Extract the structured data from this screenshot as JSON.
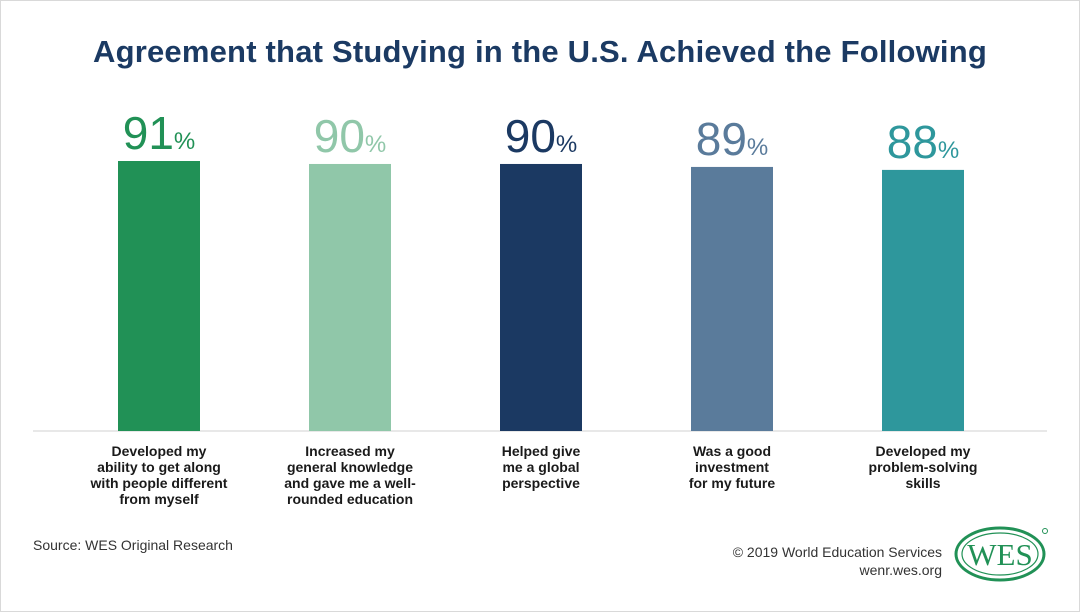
{
  "header": {
    "title": "Agreement that Studying in the U.S. Achieved the Following"
  },
  "chart_data": {
    "type": "bar",
    "title": "Agreement that Studying in the U.S. Achieved the Following",
    "unit": "%",
    "ylim": [
      0,
      100
    ],
    "grid": false,
    "legend": "none",
    "categories": [
      "Developed my ability to get along with people different from myself",
      "Increased my general knowledge and gave me a well-rounded education",
      "Helped give me a global perspective",
      "Was a good investment for my future",
      "Developed my problem-solving skills"
    ],
    "category_lines": [
      [
        "Developed my",
        "ability to get along",
        "with people different",
        "from myself"
      ],
      [
        "Increased my",
        "general knowledge",
        "and gave me a well-",
        "rounded education"
      ],
      [
        "Helped give",
        "me a global",
        "perspective"
      ],
      [
        "Was a good",
        "investment",
        "for my future"
      ],
      [
        "Developed my",
        "problem-solving",
        "skills"
      ]
    ],
    "values": [
      91,
      90,
      90,
      89,
      88
    ],
    "colors": [
      "#219156",
      "#90c7a9",
      "#1b3962",
      "#5a7b9b",
      "#2e979c"
    ]
  },
  "footer": {
    "source": "Source: WES Original Research",
    "copyright": "© 2019 World Education Services",
    "website": "wenr.wes.org",
    "logo_text": "WES",
    "logo_color": "#219156"
  }
}
